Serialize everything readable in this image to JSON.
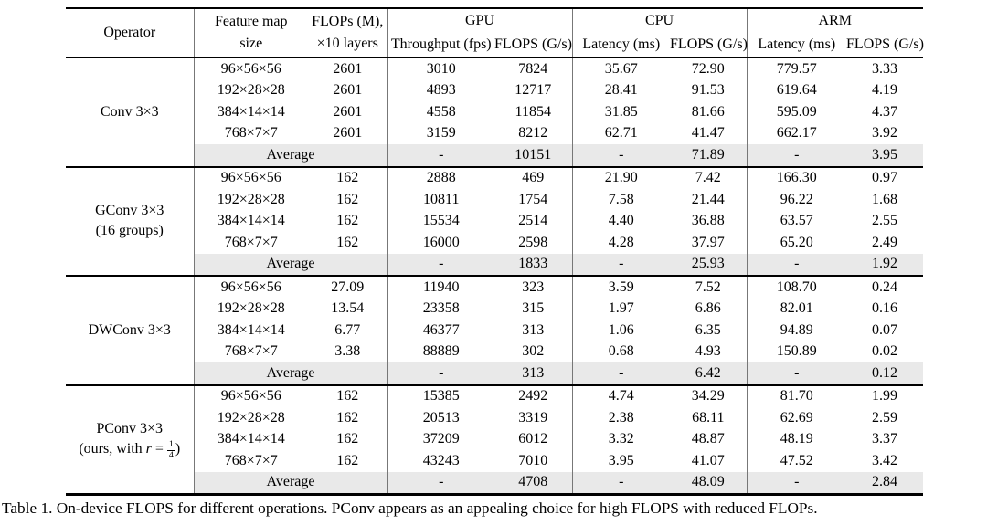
{
  "caption": "Table 1. On-device FLOPS for different operations. PConv appears as an appealing choice for high FLOPS with reduced FLOPs.",
  "colors": {
    "rule": "#000000",
    "vertical_rule": "#777777",
    "average_row_background": "#e9e9e9",
    "text": "#000000"
  },
  "table": {
    "header": {
      "operator": "Operator",
      "feature_map": [
        "Feature map",
        "size"
      ],
      "flops": [
        "FLOPs (M),",
        "×10 layers"
      ],
      "groups": [
        {
          "label": "GPU",
          "sub": [
            "Throughput (fps)",
            "FLOPS (G/s)"
          ]
        },
        {
          "label": "CPU",
          "sub": [
            "Latency (ms)",
            "FLOPS (G/s)"
          ]
        },
        {
          "label": "ARM",
          "sub": [
            "Latency (ms)",
            "FLOPS (G/s)"
          ]
        }
      ]
    },
    "average_label": "Average",
    "groups": [
      {
        "name_lines": [
          "Conv 3×3"
        ],
        "rows": [
          [
            "96×56×56",
            "2601",
            "3010",
            "7824",
            "35.67",
            "72.90",
            "779.57",
            "3.33"
          ],
          [
            "192×28×28",
            "2601",
            "4893",
            "12717",
            "28.41",
            "91.53",
            "619.64",
            "4.19"
          ],
          [
            "384×14×14",
            "2601",
            "4558",
            "11854",
            "31.85",
            "81.66",
            "595.09",
            "4.37"
          ],
          [
            "768×7×7",
            "2601",
            "3159",
            "8212",
            "62.71",
            "41.47",
            "662.17",
            "3.92"
          ]
        ],
        "average": [
          "-",
          "10151",
          "-",
          "71.89",
          "-",
          "3.95"
        ]
      },
      {
        "name_lines": [
          "GConv 3×3",
          "(16 groups)"
        ],
        "rows": [
          [
            "96×56×56",
            "162",
            "2888",
            "469",
            "21.90",
            "7.42",
            "166.30",
            "0.97"
          ],
          [
            "192×28×28",
            "162",
            "10811",
            "1754",
            "7.58",
            "21.44",
            "96.22",
            "1.68"
          ],
          [
            "384×14×14",
            "162",
            "15534",
            "2514",
            "4.40",
            "36.88",
            "63.57",
            "2.55"
          ],
          [
            "768×7×7",
            "162",
            "16000",
            "2598",
            "4.28",
            "37.97",
            "65.20",
            "2.49"
          ]
        ],
        "average": [
          "-",
          "1833",
          "-",
          "25.93",
          "-",
          "1.92"
        ]
      },
      {
        "name_lines": [
          "DWConv 3×3"
        ],
        "rows": [
          [
            "96×56×56",
            "27.09",
            "11940",
            "323",
            "3.59",
            "7.52",
            "108.70",
            "0.24"
          ],
          [
            "192×28×28",
            "13.54",
            "23358",
            "315",
            "1.97",
            "6.86",
            "82.01",
            "0.16"
          ],
          [
            "384×14×14",
            "6.77",
            "46377",
            "313",
            "1.06",
            "6.35",
            "94.89",
            "0.07"
          ],
          [
            "768×7×7",
            "3.38",
            "88889",
            "302",
            "0.68",
            "4.93",
            "150.89",
            "0.02"
          ]
        ],
        "average": [
          "-",
          "313",
          "-",
          "6.42",
          "-",
          "0.12"
        ]
      },
      {
        "name_lines": [
          "PConv 3×3"
        ],
        "name_line2": {
          "prefix": "(ours, with ",
          "variable": "r",
          "equals": " = ",
          "frac_num": "1",
          "frac_den": "4",
          "suffix": ")"
        },
        "rows": [
          [
            "96×56×56",
            "162",
            "15385",
            "2492",
            "4.74",
            "34.29",
            "81.70",
            "1.99"
          ],
          [
            "192×28×28",
            "162",
            "20513",
            "3319",
            "2.38",
            "68.11",
            "62.69",
            "2.59"
          ],
          [
            "384×14×14",
            "162",
            "37209",
            "6012",
            "3.32",
            "48.87",
            "48.19",
            "3.37"
          ],
          [
            "768×7×7",
            "162",
            "43243",
            "7010",
            "3.95",
            "41.07",
            "47.52",
            "3.42"
          ]
        ],
        "average": [
          "-",
          "4708",
          "-",
          "48.09",
          "-",
          "2.84"
        ]
      }
    ]
  }
}
